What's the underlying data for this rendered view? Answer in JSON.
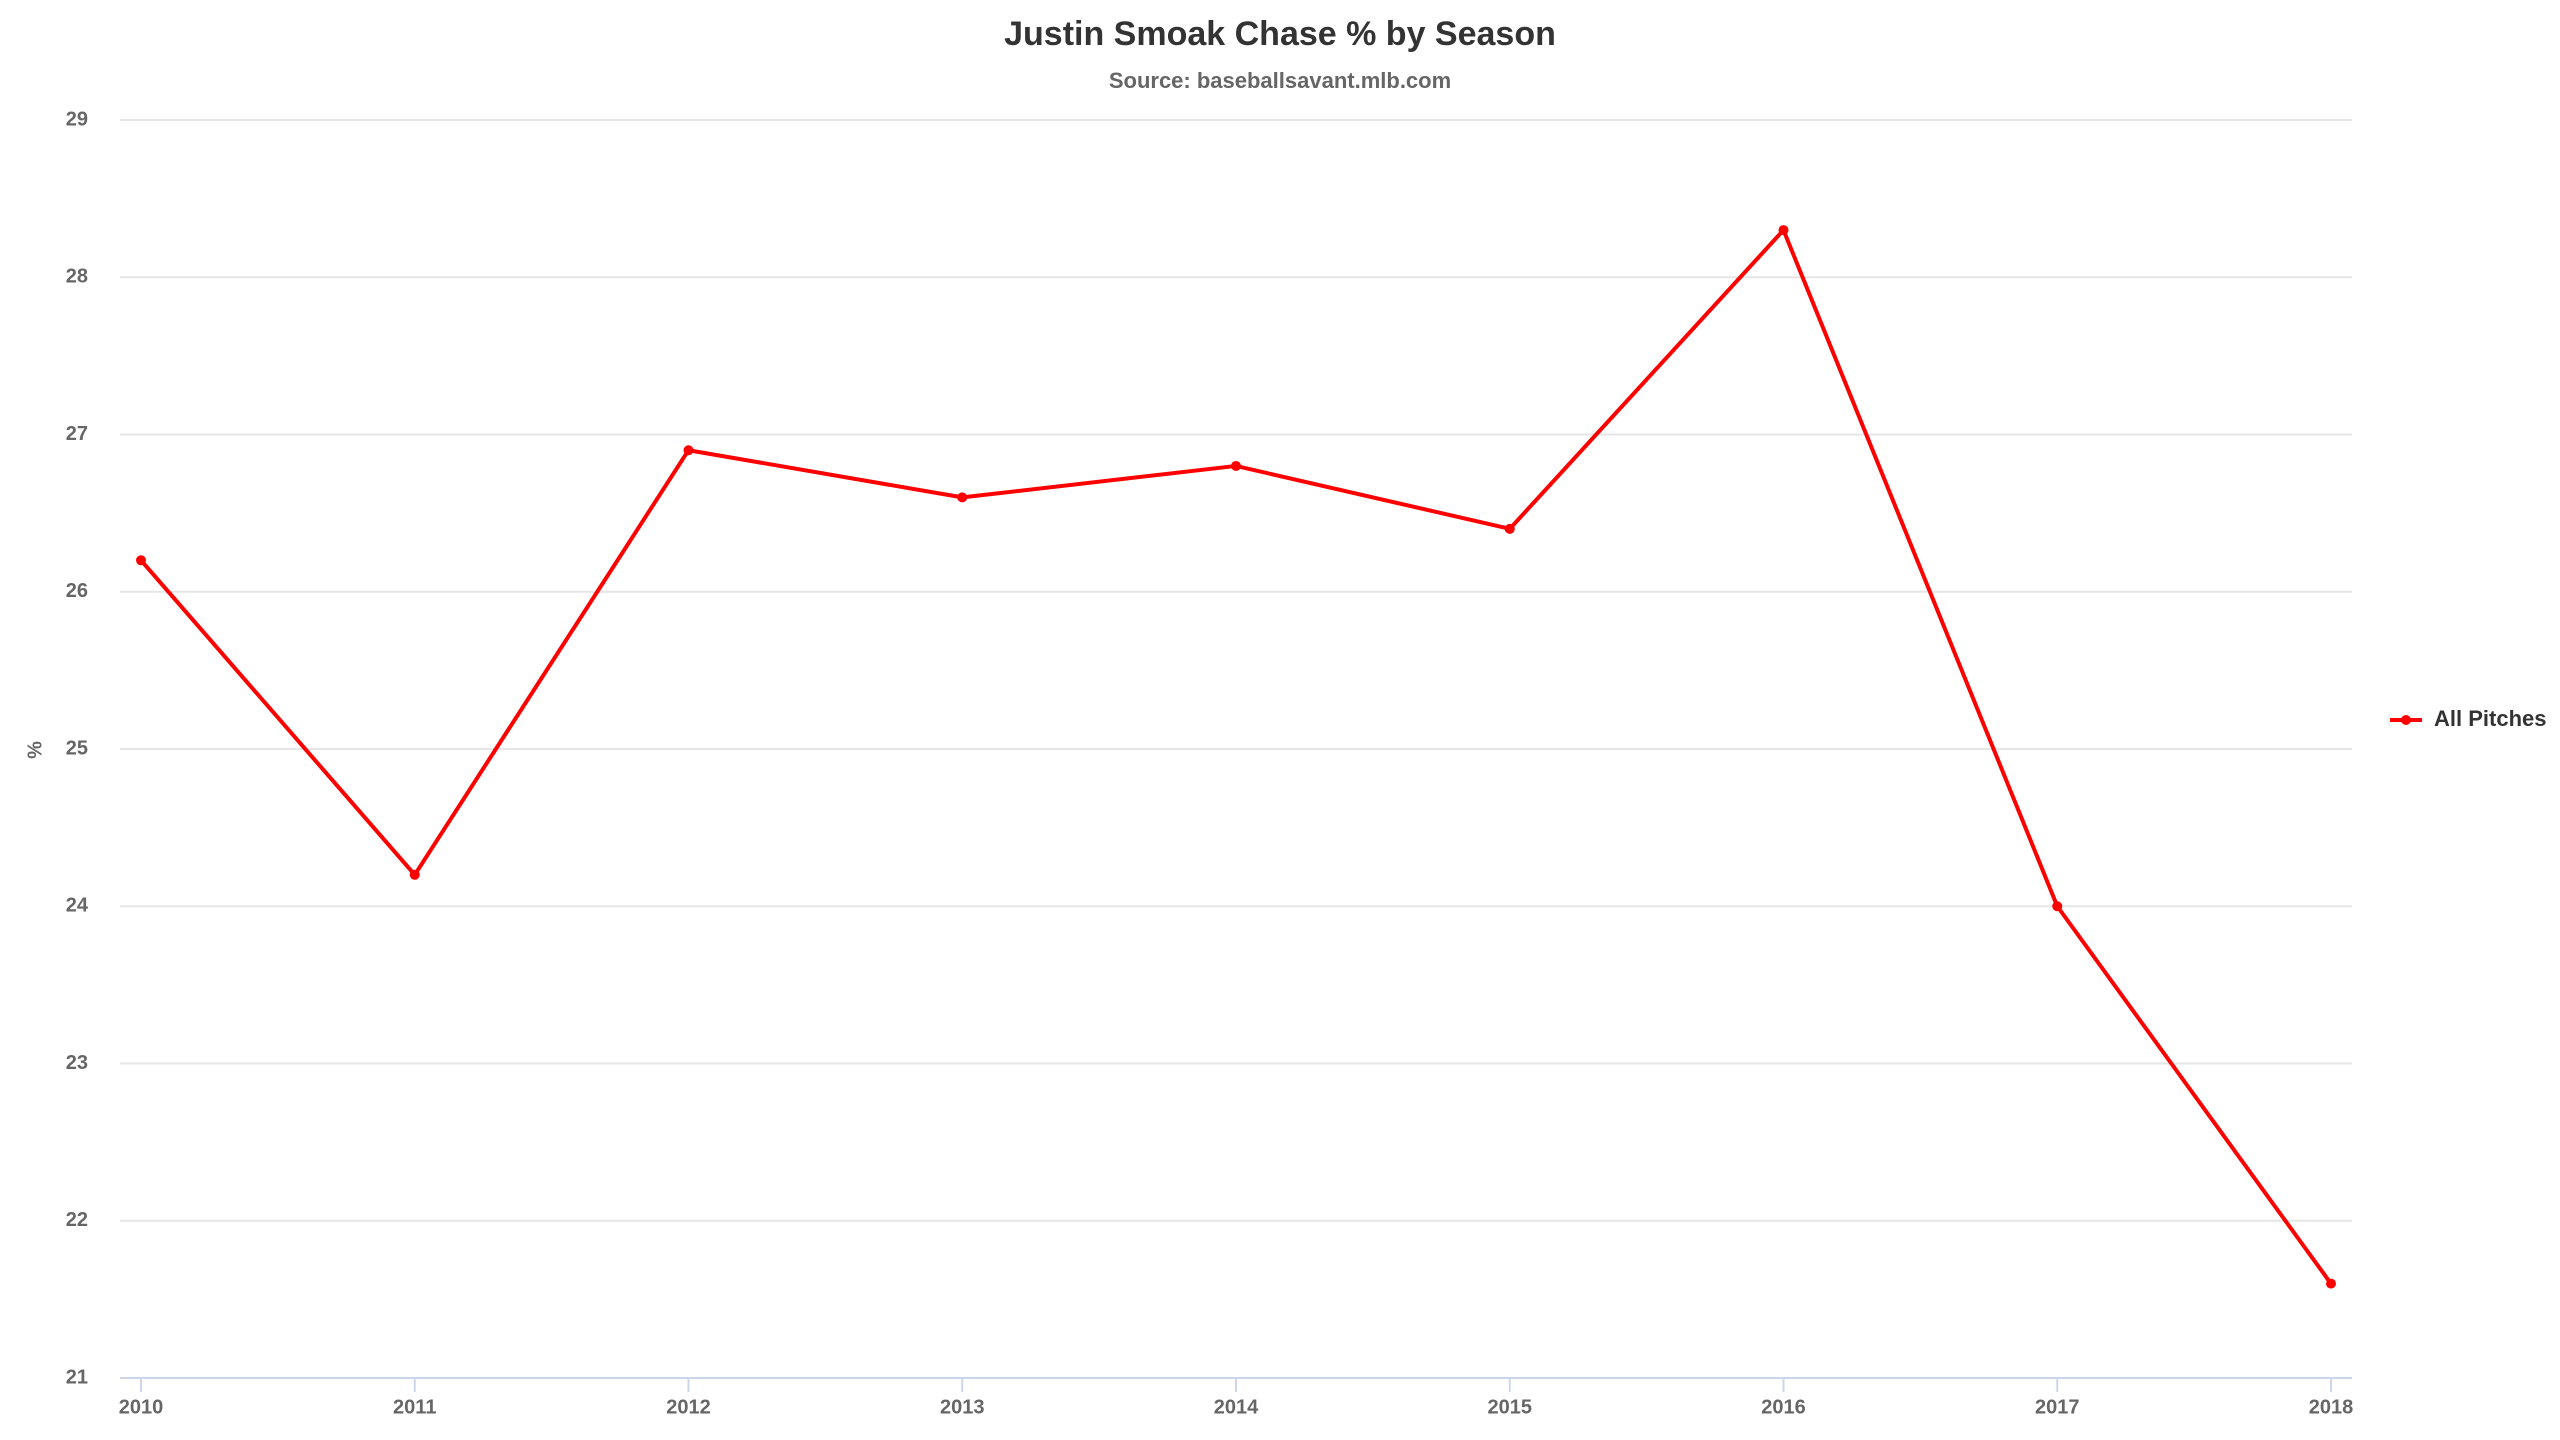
{
  "chart_data": {
    "type": "line",
    "title": "Justin Smoak Chase % by Season",
    "subtitle": "Source: baseballsavant.mlb.com",
    "y_label": "%",
    "categories": [
      "2010",
      "2011",
      "2012",
      "2013",
      "2014",
      "2015",
      "2016",
      "2017",
      "2018"
    ],
    "series": [
      {
        "name": "All Pitches",
        "color": "#ff0000",
        "values": [
          26.2,
          24.2,
          26.9,
          26.6,
          26.8,
          26.4,
          28.3,
          24.0,
          21.6
        ]
      }
    ],
    "ylim": [
      21,
      29
    ],
    "yticks": [
      21,
      22,
      23,
      24,
      25,
      26,
      27,
      28,
      29
    ],
    "grid": true,
    "legend": "right"
  }
}
